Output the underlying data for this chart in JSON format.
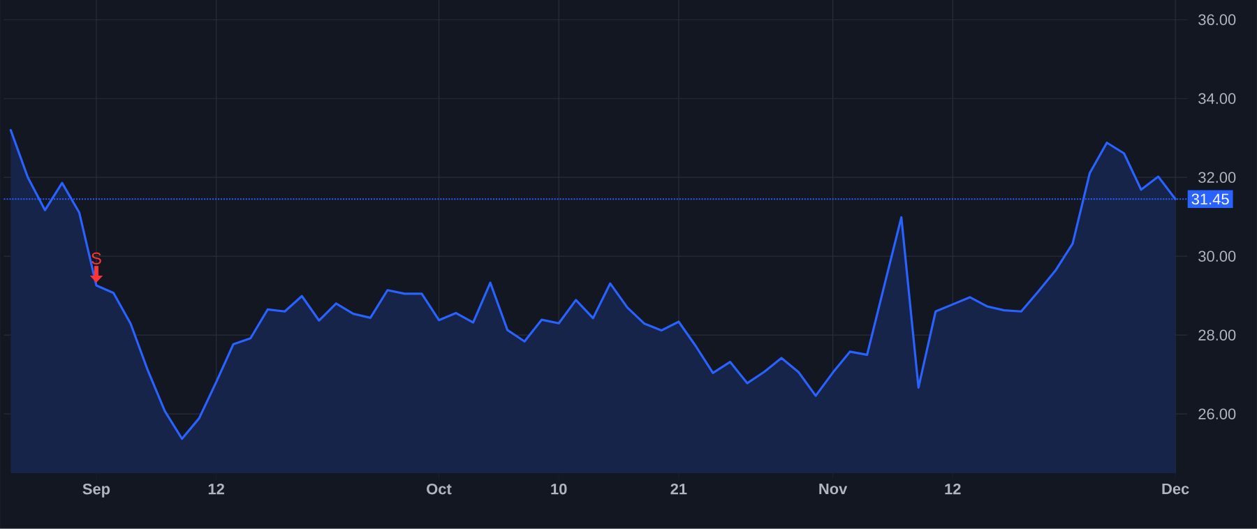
{
  "chart_data": {
    "type": "area",
    "categories": [
      null,
      null,
      null,
      null,
      null,
      "Sep",
      null,
      null,
      null,
      null,
      null,
      null,
      "12",
      null,
      null,
      null,
      null,
      null,
      null,
      null,
      null,
      null,
      null,
      null,
      null,
      "Oct",
      null,
      null,
      null,
      null,
      null,
      null,
      "10",
      null,
      null,
      null,
      null,
      null,
      null,
      "21",
      null,
      null,
      null,
      null,
      null,
      null,
      null,
      null,
      "Nov",
      null,
      null,
      null,
      null,
      null,
      null,
      "12",
      null,
      null,
      null,
      null,
      null,
      null,
      null,
      null,
      null,
      null,
      null,
      null,
      "Dec"
    ],
    "series": [
      {
        "color": "#2962ff",
        "values": [
          33.2,
          32.0,
          31.17,
          31.86,
          31.11,
          29.26,
          29.07,
          28.29,
          27.11,
          26.07,
          25.37,
          25.89,
          26.81,
          27.77,
          27.92,
          28.65,
          28.6,
          28.99,
          28.37,
          28.8,
          28.54,
          28.44,
          29.14,
          29.05,
          29.05,
          28.38,
          28.56,
          28.32,
          29.33,
          28.13,
          27.84,
          28.39,
          28.3,
          28.89,
          28.43,
          29.31,
          28.7,
          28.29,
          28.12,
          28.34,
          27.72,
          27.04,
          27.32,
          26.78,
          27.07,
          27.42,
          27.06,
          26.46,
          27.05,
          27.58,
          27.5,
          29.25,
          30.99,
          26.67,
          28.6,
          28.78,
          28.96,
          28.73,
          28.63,
          28.6,
          29.11,
          29.64,
          30.32,
          32.11,
          32.88,
          32.61,
          31.69,
          32.02,
          31.45
        ]
      }
    ],
    "ylim": [
      24.5,
      36.5
    ],
    "yticks": [
      {
        "value": 26,
        "label": "26.00"
      },
      {
        "value": 28,
        "label": "28.00"
      },
      {
        "value": 30,
        "label": "30.00"
      },
      {
        "value": 32,
        "label": "32.00"
      },
      {
        "value": 34,
        "label": "34.00"
      },
      {
        "value": 36,
        "label": "36.00"
      }
    ],
    "grid": true,
    "marker": "none",
    "line_style": "solid",
    "ref_lines": [
      {
        "axis": "y",
        "value": 31.45,
        "label": "31.45",
        "color": "#2962ff",
        "line_style": "dotted"
      }
    ],
    "annotations": [
      {
        "text": "S",
        "x": "Sep",
        "y": 29.26
      }
    ]
  }
}
